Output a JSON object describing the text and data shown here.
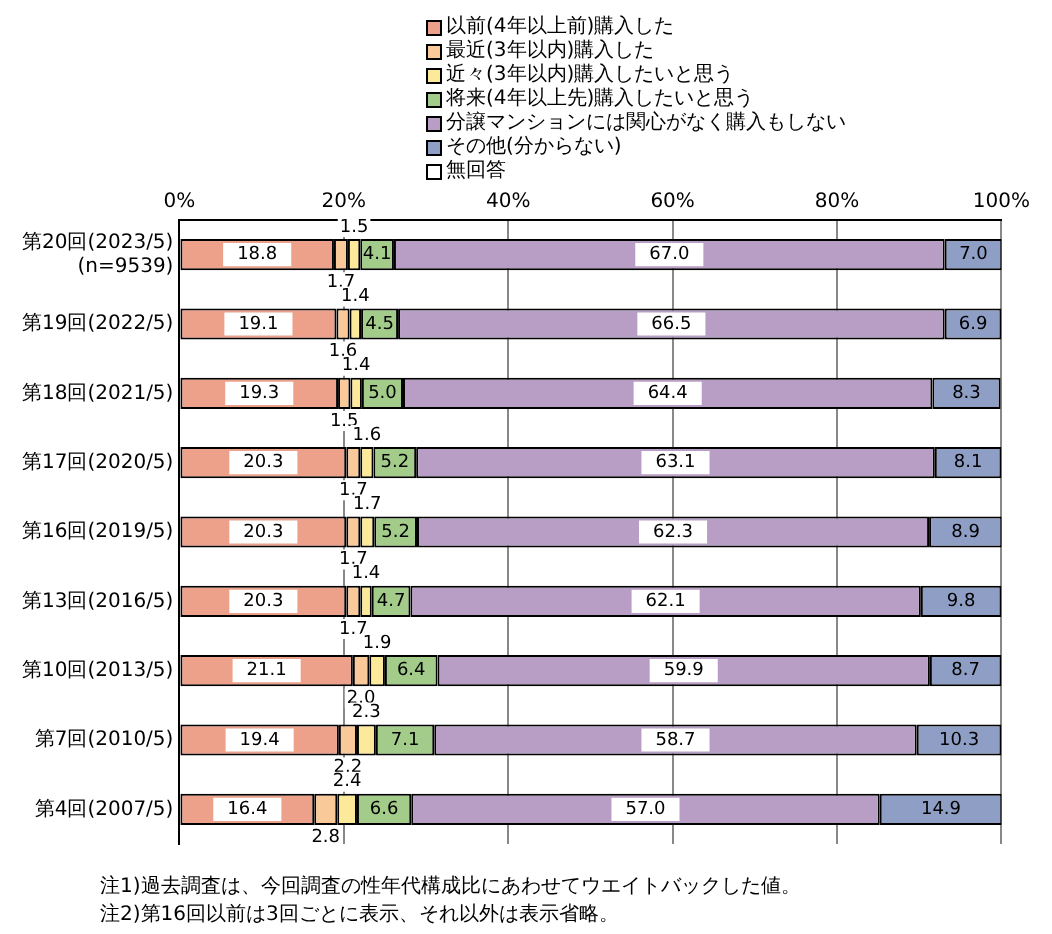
{
  "chart_data": {
    "type": "bar",
    "orientation": "horizontal",
    "stacked": true,
    "categories": [
      "第20回(2023/5)\n(n=9539)",
      "第19回(2022/5)",
      "第18回(2021/5)",
      "第17回(2020/5)",
      "第16回(2019/5)",
      "第13回(2016/5)",
      "第10回(2013/5)",
      "第7回(2010/5)",
      "第4回(2007/5)"
    ],
    "series": [
      {
        "name": "以前(4年以上前)購入した",
        "color": "#eda08a",
        "values": [
          18.8,
          19.1,
          19.3,
          20.3,
          20.3,
          20.3,
          21.1,
          19.4,
          16.4
        ]
      },
      {
        "name": "最近(3年以内)購入した",
        "color": "#f9c99a",
        "values": [
          1.7,
          1.6,
          1.5,
          1.7,
          1.7,
          1.7,
          2.0,
          2.2,
          2.8
        ]
      },
      {
        "name": "近々(3年以内)購入したいと思う",
        "color": "#fde99a",
        "values": [
          1.5,
          1.4,
          1.4,
          1.6,
          1.7,
          1.4,
          1.9,
          2.3,
          2.4
        ]
      },
      {
        "name": "将来(4年以上先)購入したいと思う",
        "color": "#a3cc8a",
        "values": [
          4.1,
          4.5,
          5.0,
          5.2,
          5.2,
          4.7,
          6.4,
          7.1,
          6.6
        ]
      },
      {
        "name": "分譲マンションには関心がなく購入もしない",
        "color": "#b89ec4",
        "values": [
          67.0,
          66.5,
          64.4,
          63.1,
          62.3,
          62.1,
          59.9,
          58.7,
          57.0
        ]
      },
      {
        "name": "その他(分からない)",
        "color": "#8e9ec4",
        "values": [
          7.0,
          6.9,
          8.3,
          8.1,
          8.9,
          9.8,
          8.7,
          10.3,
          14.9
        ]
      },
      {
        "name": "無回答",
        "color": "#ffffff",
        "values": [
          0,
          0,
          0,
          0,
          0,
          0,
          0,
          0,
          0
        ]
      }
    ],
    "value_labels": [
      [
        "18.8",
        "19.1",
        "19.3",
        "20.3",
        "20.3",
        "20.3",
        "21.1",
        "19.4",
        "16.4"
      ],
      [
        "1.7",
        "1.6",
        "1.5",
        "1.7",
        "1.7",
        "1.7",
        "2.0",
        "2.2",
        "2.8"
      ],
      [
        "1.5",
        "1.4",
        "1.4",
        "1.6",
        "1.7",
        "1.4",
        "1.9",
        "2.3",
        "2.4"
      ],
      [
        "4.1",
        "4.5",
        "5.0",
        "5.2",
        "5.2",
        "4.7",
        "6.4",
        "7.1",
        "6.6"
      ],
      [
        "67.0",
        "66.5",
        "64.4",
        "63.1",
        "62.3",
        "62.1",
        "59.9",
        "58.7",
        "57.0"
      ],
      [
        "7.0",
        "6.9",
        "8.3",
        "8.1",
        "8.9",
        "9.8",
        "8.7",
        "10.3",
        "14.9"
      ],
      [
        null,
        null,
        null,
        null,
        null,
        null,
        null,
        null,
        null
      ]
    ],
    "xlim": [
      0,
      100
    ],
    "xticks": [
      {
        "value": 0,
        "label": "0%"
      },
      {
        "value": 20,
        "label": "20%"
      },
      {
        "value": 40,
        "label": "40%"
      },
      {
        "value": 60,
        "label": "60%"
      },
      {
        "value": 80,
        "label": "80%"
      },
      {
        "value": 100,
        "label": "100%"
      }
    ],
    "grid": "x",
    "legend": "top",
    "annotations": [
      "注1)過去調査は、今回調査の性年代構成比にあわせてウエイトバックした値。",
      "注2)第16回以前は3回ごとに表示、それ以外は表示省略。"
    ]
  }
}
